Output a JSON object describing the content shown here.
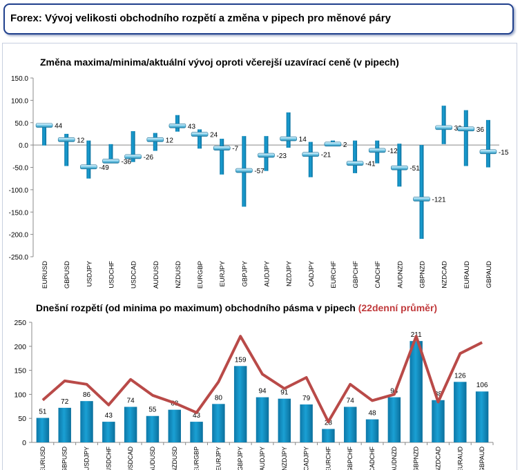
{
  "page": {
    "title": "Forex: Vývoj velikosti obchodního rozpětí a změna v pipech pro měnové páry"
  },
  "colors": {
    "bar": "#1aa0d4",
    "line": "#b94a48",
    "title_border": "#1f3f8c",
    "accent_red": "#c0393b"
  },
  "chart_data": [
    {
      "type": "bar",
      "subtype": "high-low-close",
      "title": "Změna maxima/minima/aktuální vývoj oproti včerejší uzavírací ceně (v pipech)",
      "categories": [
        "EURUSD",
        "GBPUSD",
        "USDJPY",
        "USDCHF",
        "USDCAD",
        "AUDUSD",
        "NZDUSD",
        "EURGBP",
        "EURJPY",
        "GBPJPY",
        "AUDJPY",
        "NZDJPY",
        "CADJPY",
        "EURCHF",
        "GBPCHF",
        "CADCHF",
        "AUDNZD",
        "GBPNZD",
        "NZDCAD",
        "EURAUD",
        "GBPAUD"
      ],
      "high": [
        47,
        25,
        10,
        2,
        31,
        27,
        67,
        35,
        14,
        20,
        20,
        73,
        7,
        10,
        10,
        10,
        3,
        0,
        88,
        78,
        56
      ],
      "low": [
        -1,
        -47,
        -75,
        -38,
        -38,
        -13,
        30,
        -8,
        -66,
        -138,
        -58,
        -6,
        -72,
        1,
        -63,
        -41,
        -93,
        -210,
        2,
        -47,
        -50
      ],
      "current": [
        44,
        12,
        -49,
        -36,
        -26,
        12,
        43,
        24,
        -7,
        -57,
        -23,
        14,
        -21,
        2,
        -41,
        -12,
        -51,
        -121,
        39,
        36,
        -15
      ],
      "labels": [
        "44",
        "12",
        "-49",
        "-36",
        "-26",
        "12",
        "43",
        "24",
        "-7",
        "-57",
        "-23",
        "14",
        "-21",
        "2",
        "-41",
        "-12",
        "-51",
        "-121",
        "39",
        "36",
        "-15"
      ],
      "ylim": [
        -250,
        150
      ],
      "yticks": [
        "150.0",
        "100.0",
        "50.0",
        "0.0",
        "-50.0",
        "-100.0",
        "-150.0",
        "-200.0",
        "-250.0"
      ],
      "grid": false
    },
    {
      "type": "bar",
      "title": "Dnešní rozpětí (od minima po maximum) obchodního pásma v pipech",
      "title_highlight": "(22denní průměr)",
      "categories": [
        "EURUSD",
        "GBPUSD",
        "USDJPY",
        "USDCHF",
        "USDCAD",
        "AUDUSD",
        "NZDUSD",
        "EURGBP",
        "EURJPY",
        "GBPJPY",
        "AUDJPY",
        "NZDJPY",
        "CADJPY",
        "EURCHF",
        "GBPCHF",
        "CADCHF",
        "AUDNZD",
        "GBPNZD",
        "NZDCAD",
        "EURAUD",
        "GBPAUD"
      ],
      "series": [
        {
          "values": [
            51,
            72,
            86,
            43,
            74,
            55,
            68,
            43,
            80,
            159,
            94,
            91,
            79,
            28,
            74,
            48,
            94,
            211,
            88,
            126,
            106
          ]
        },
        {
          "values": [
            88,
            128,
            121,
            78,
            131,
            98,
            82,
            62,
            126,
            221,
            142,
            112,
            135,
            43,
            121,
            87,
            100,
            221,
            84,
            185,
            208
          ]
        }
      ],
      "ylim": [
        0,
        250
      ],
      "yticks": [
        "250",
        "200",
        "150",
        "100",
        "50",
        "0"
      ],
      "grid": false
    }
  ]
}
